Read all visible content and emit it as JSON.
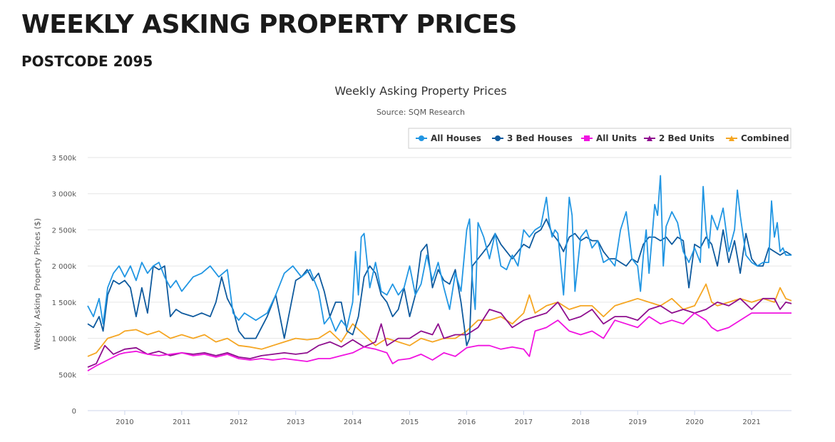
{
  "header": {
    "title": "WEEKLY ASKING PROPERTY PRICES",
    "subtitle": "POSTCODE 2095"
  },
  "chart_data": {
    "type": "line",
    "title": "Weekly Asking Property Prices",
    "subtitle": "Source: SQM Research",
    "xlabel": "",
    "ylabel": "Weekly Asking Property Prices ($)",
    "xlim": [
      2009.35,
      2021.7
    ],
    "ylim": [
      0,
      3500
    ],
    "x_ticks": [
      2010,
      2011,
      2012,
      2013,
      2014,
      2015,
      2016,
      2017,
      2018,
      2019,
      2020,
      2021
    ],
    "y_ticks": [
      0,
      500,
      1000,
      1500,
      2000,
      2500,
      3000,
      3500
    ],
    "y_tick_labels": [
      "0",
      "500k",
      "1 000k",
      "1 500k",
      "2 000k",
      "2 500k",
      "3 000k",
      "3 500k"
    ],
    "grid": true,
    "legend_position": "top-right",
    "series": [
      {
        "name": "All Houses",
        "color": "#2196E3",
        "x": [
          2009.35,
          2009.45,
          2009.55,
          2009.62,
          2009.7,
          2009.8,
          2009.9,
          2010.0,
          2010.1,
          2010.2,
          2010.3,
          2010.4,
          2010.5,
          2010.6,
          2010.7,
          2010.8,
          2010.9,
          2011.0,
          2011.2,
          2011.35,
          2011.5,
          2011.65,
          2011.8,
          2011.9,
          2012.0,
          2012.1,
          2012.3,
          2012.5,
          2012.65,
          2012.8,
          2012.95,
          2013.1,
          2013.25,
          2013.4,
          2013.5,
          2013.6,
          2013.7,
          2013.8,
          2013.9,
          2014.0,
          2014.05,
          2014.1,
          2014.15,
          2014.2,
          2014.3,
          2014.4,
          2014.5,
          2014.6,
          2014.7,
          2014.8,
          2014.9,
          2015.0,
          2015.1,
          2015.2,
          2015.3,
          2015.4,
          2015.5,
          2015.6,
          2015.7,
          2015.8,
          2015.9,
          2016.0,
          2016.05,
          2016.1,
          2016.15,
          2016.2,
          2016.3,
          2016.4,
          2016.5,
          2016.6,
          2016.7,
          2016.8,
          2016.9,
          2017.0,
          2017.1,
          2017.2,
          2017.3,
          2017.4,
          2017.45,
          2017.5,
          2017.55,
          2017.6,
          2017.7,
          2017.75,
          2017.8,
          2017.85,
          2017.9,
          2018.0,
          2018.1,
          2018.2,
          2018.3,
          2018.4,
          2018.5,
          2018.6,
          2018.7,
          2018.8,
          2018.9,
          2019.0,
          2019.05,
          2019.1,
          2019.15,
          2019.2,
          2019.3,
          2019.35,
          2019.4,
          2019.45,
          2019.5,
          2019.6,
          2019.7,
          2019.8,
          2019.9,
          2020.0,
          2020.1,
          2020.15,
          2020.2,
          2020.25,
          2020.3,
          2020.4,
          2020.5,
          2020.6,
          2020.7,
          2020.75,
          2020.8,
          2020.9,
          2021.0,
          2021.1,
          2021.2,
          2021.3,
          2021.35,
          2021.4,
          2021.45,
          2021.5,
          2021.55,
          2021.6,
          2021.7
        ],
        "values": [
          1450,
          1300,
          1550,
          1200,
          1700,
          1900,
          2000,
          1850,
          2000,
          1800,
          2050,
          1900,
          2000,
          2050,
          1850,
          1700,
          1800,
          1650,
          1850,
          1900,
          2000,
          1850,
          1950,
          1350,
          1250,
          1350,
          1250,
          1350,
          1600,
          1900,
          2000,
          1850,
          1950,
          1650,
          1200,
          1300,
          1100,
          1250,
          1150,
          1500,
          2200,
          1600,
          2400,
          2450,
          1700,
          2050,
          1650,
          1600,
          1750,
          1600,
          1700,
          2000,
          1600,
          1750,
          2150,
          1800,
          2050,
          1700,
          1400,
          1900,
          1650,
          2500,
          2650,
          1800,
          1400,
          2600,
          2400,
          2100,
          2450,
          2000,
          1950,
          2150,
          2000,
          2500,
          2400,
          2500,
          2550,
          2950,
          2600,
          2400,
          2500,
          2450,
          1600,
          2250,
          2950,
          2700,
          1650,
          2400,
          2500,
          2250,
          2350,
          2050,
          2100,
          2000,
          2500,
          2750,
          2100,
          2000,
          1650,
          2150,
          2500,
          1900,
          2850,
          2700,
          3250,
          2000,
          2550,
          2750,
          2600,
          2200,
          2050,
          2250,
          2050,
          3100,
          2500,
          2250,
          2700,
          2500,
          2800,
          2200,
          2500,
          3050,
          2700,
          2150,
          2050,
          2000,
          2050,
          2050,
          2900,
          2400,
          2600,
          2200,
          2250,
          2150,
          2150
        ]
      },
      {
        "name": "3 Bed Houses",
        "color": "#0E5A9E",
        "x": [
          2009.35,
          2009.45,
          2009.55,
          2009.62,
          2009.7,
          2009.8,
          2009.9,
          2010.0,
          2010.1,
          2010.2,
          2010.3,
          2010.4,
          2010.5,
          2010.6,
          2010.7,
          2010.8,
          2010.9,
          2011.0,
          2011.2,
          2011.35,
          2011.5,
          2011.6,
          2011.7,
          2011.8,
          2011.9,
          2012.0,
          2012.1,
          2012.3,
          2012.5,
          2012.65,
          2012.8,
          2012.9,
          2013.0,
          2013.1,
          2013.2,
          2013.3,
          2013.4,
          2013.5,
          2013.6,
          2013.7,
          2013.8,
          2013.9,
          2014.0,
          2014.1,
          2014.2,
          2014.3,
          2014.4,
          2014.5,
          2014.6,
          2014.7,
          2014.8,
          2014.9,
          2015.0,
          2015.1,
          2015.2,
          2015.3,
          2015.4,
          2015.5,
          2015.6,
          2015.7,
          2015.8,
          2015.9,
          2016.0,
          2016.05,
          2016.1,
          2016.2,
          2016.3,
          2016.4,
          2016.5,
          2016.6,
          2016.7,
          2016.8,
          2016.9,
          2017.0,
          2017.1,
          2017.2,
          2017.3,
          2017.4,
          2017.5,
          2017.6,
          2017.7,
          2017.8,
          2017.9,
          2018.0,
          2018.1,
          2018.2,
          2018.3,
          2018.4,
          2018.5,
          2018.6,
          2018.7,
          2018.8,
          2018.9,
          2019.0,
          2019.1,
          2019.2,
          2019.3,
          2019.4,
          2019.5,
          2019.6,
          2019.7,
          2019.8,
          2019.9,
          2020.0,
          2020.1,
          2020.2,
          2020.3,
          2020.4,
          2020.5,
          2020.6,
          2020.7,
          2020.8,
          2020.9,
          2021.0,
          2021.1,
          2021.2,
          2021.3,
          2021.4,
          2021.5,
          2021.6,
          2021.7
        ],
        "values": [
          1200,
          1150,
          1300,
          1100,
          1600,
          1800,
          1750,
          1800,
          1700,
          1300,
          1700,
          1350,
          2000,
          1950,
          2000,
          1300,
          1400,
          1350,
          1300,
          1350,
          1300,
          1500,
          1850,
          1550,
          1400,
          1100,
          1000,
          1000,
          1300,
          1600,
          1000,
          1400,
          1800,
          1850,
          1950,
          1800,
          1900,
          1650,
          1300,
          1500,
          1500,
          1100,
          1050,
          1300,
          1850,
          2000,
          1900,
          1600,
          1500,
          1300,
          1400,
          1700,
          1300,
          1600,
          2200,
          2300,
          1700,
          1950,
          1800,
          1750,
          1950,
          1500,
          900,
          1000,
          2000,
          2100,
          2200,
          2300,
          2450,
          2300,
          2200,
          2100,
          2200,
          2300,
          2250,
          2450,
          2500,
          2650,
          2450,
          2350,
          2200,
          2400,
          2450,
          2350,
          2400,
          2350,
          2350,
          2200,
          2100,
          2100,
          2050,
          2000,
          2100,
          2050,
          2300,
          2400,
          2400,
          2350,
          2400,
          2300,
          2400,
          2350,
          1700,
          2300,
          2250,
          2400,
          2300,
          2000,
          2500,
          2050,
          2350,
          1900,
          2450,
          2100,
          2000,
          2000,
          2250,
          2200,
          2150,
          2200,
          2150
        ]
      },
      {
        "name": "All Units",
        "color": "#F013E0",
        "x": [
          2009.35,
          2009.5,
          2009.7,
          2009.9,
          2010.0,
          2010.2,
          2010.4,
          2010.6,
          2010.8,
          2011.0,
          2011.2,
          2011.4,
          2011.6,
          2011.8,
          2012.0,
          2012.2,
          2012.4,
          2012.6,
          2012.8,
          2013.0,
          2013.2,
          2013.4,
          2013.6,
          2013.8,
          2014.0,
          2014.2,
          2014.4,
          2014.6,
          2014.7,
          2014.8,
          2015.0,
          2015.2,
          2015.4,
          2015.6,
          2015.8,
          2016.0,
          2016.2,
          2016.4,
          2016.6,
          2016.8,
          2017.0,
          2017.1,
          2017.2,
          2017.4,
          2017.6,
          2017.8,
          2018.0,
          2018.2,
          2018.4,
          2018.6,
          2018.8,
          2019.0,
          2019.2,
          2019.4,
          2019.6,
          2019.8,
          2020.0,
          2020.2,
          2020.3,
          2020.4,
          2020.6,
          2020.8,
          2021.0,
          2021.2,
          2021.4,
          2021.6,
          2021.7
        ],
        "values": [
          550,
          620,
          700,
          780,
          800,
          820,
          780,
          760,
          780,
          800,
          760,
          780,
          740,
          780,
          720,
          700,
          720,
          700,
          720,
          700,
          680,
          720,
          720,
          760,
          800,
          880,
          850,
          800,
          650,
          700,
          720,
          780,
          700,
          800,
          750,
          870,
          900,
          900,
          850,
          880,
          850,
          750,
          1100,
          1150,
          1250,
          1100,
          1050,
          1100,
          1000,
          1250,
          1200,
          1150,
          1300,
          1200,
          1250,
          1200,
          1350,
          1250,
          1150,
          1100,
          1150,
          1250,
          1350,
          1350,
          1350,
          1350,
          1350
        ]
      },
      {
        "name": "2 Bed Units",
        "color": "#8E0E8E",
        "x": [
          2009.35,
          2009.5,
          2009.65,
          2009.8,
          2010.0,
          2010.2,
          2010.4,
          2010.6,
          2010.8,
          2011.0,
          2011.2,
          2011.4,
          2011.6,
          2011.8,
          2012.0,
          2012.2,
          2012.4,
          2012.6,
          2012.8,
          2013.0,
          2013.2,
          2013.4,
          2013.6,
          2013.8,
          2014.0,
          2014.2,
          2014.4,
          2014.5,
          2014.6,
          2014.8,
          2015.0,
          2015.2,
          2015.4,
          2015.5,
          2015.6,
          2015.8,
          2016.0,
          2016.2,
          2016.4,
          2016.6,
          2016.8,
          2017.0,
          2017.2,
          2017.4,
          2017.6,
          2017.8,
          2018.0,
          2018.2,
          2018.4,
          2018.6,
          2018.8,
          2019.0,
          2019.2,
          2019.4,
          2019.6,
          2019.8,
          2020.0,
          2020.2,
          2020.4,
          2020.6,
          2020.8,
          2021.0,
          2021.2,
          2021.4,
          2021.5,
          2021.6,
          2021.7
        ],
        "values": [
          600,
          650,
          900,
          780,
          850,
          870,
          780,
          820,
          760,
          800,
          780,
          800,
          760,
          800,
          740,
          720,
          760,
          780,
          800,
          780,
          800,
          900,
          950,
          880,
          980,
          880,
          950,
          1200,
          900,
          1000,
          1000,
          1100,
          1050,
          1200,
          1000,
          1050,
          1050,
          1150,
          1400,
          1350,
          1150,
          1250,
          1300,
          1350,
          1500,
          1250,
          1300,
          1400,
          1200,
          1300,
          1300,
          1250,
          1400,
          1450,
          1350,
          1400,
          1350,
          1400,
          1500,
          1450,
          1550,
          1400,
          1550,
          1550,
          1400,
          1500,
          1480
        ]
      },
      {
        "name": "Combined",
        "color": "#F5A623",
        "x": [
          2009.35,
          2009.5,
          2009.7,
          2009.9,
          2010.0,
          2010.2,
          2010.4,
          2010.6,
          2010.8,
          2011.0,
          2011.2,
          2011.4,
          2011.6,
          2011.8,
          2012.0,
          2012.2,
          2012.4,
          2012.6,
          2012.8,
          2013.0,
          2013.2,
          2013.4,
          2013.6,
          2013.8,
          2014.0,
          2014.2,
          2014.4,
          2014.6,
          2014.8,
          2015.0,
          2015.2,
          2015.4,
          2015.6,
          2015.8,
          2016.0,
          2016.2,
          2016.4,
          2016.6,
          2016.8,
          2017.0,
          2017.1,
          2017.2,
          2017.4,
          2017.6,
          2017.8,
          2018.0,
          2018.2,
          2018.4,
          2018.6,
          2018.8,
          2019.0,
          2019.2,
          2019.4,
          2019.6,
          2019.8,
          2020.0,
          2020.2,
          2020.3,
          2020.4,
          2020.6,
          2020.8,
          2021.0,
          2021.2,
          2021.4,
          2021.5,
          2021.6,
          2021.7
        ],
        "values": [
          750,
          800,
          1000,
          1050,
          1100,
          1120,
          1050,
          1100,
          1000,
          1050,
          1000,
          1050,
          950,
          1000,
          900,
          880,
          850,
          900,
          950,
          1000,
          980,
          1000,
          1100,
          950,
          1200,
          1050,
          900,
          1000,
          950,
          900,
          1000,
          950,
          1000,
          1000,
          1100,
          1250,
          1250,
          1300,
          1200,
          1350,
          1600,
          1350,
          1450,
          1500,
          1400,
          1450,
          1450,
          1300,
          1450,
          1500,
          1550,
          1500,
          1450,
          1550,
          1400,
          1450,
          1750,
          1500,
          1450,
          1500,
          1550,
          1500,
          1550,
          1500,
          1700,
          1550,
          1520
        ]
      }
    ]
  }
}
